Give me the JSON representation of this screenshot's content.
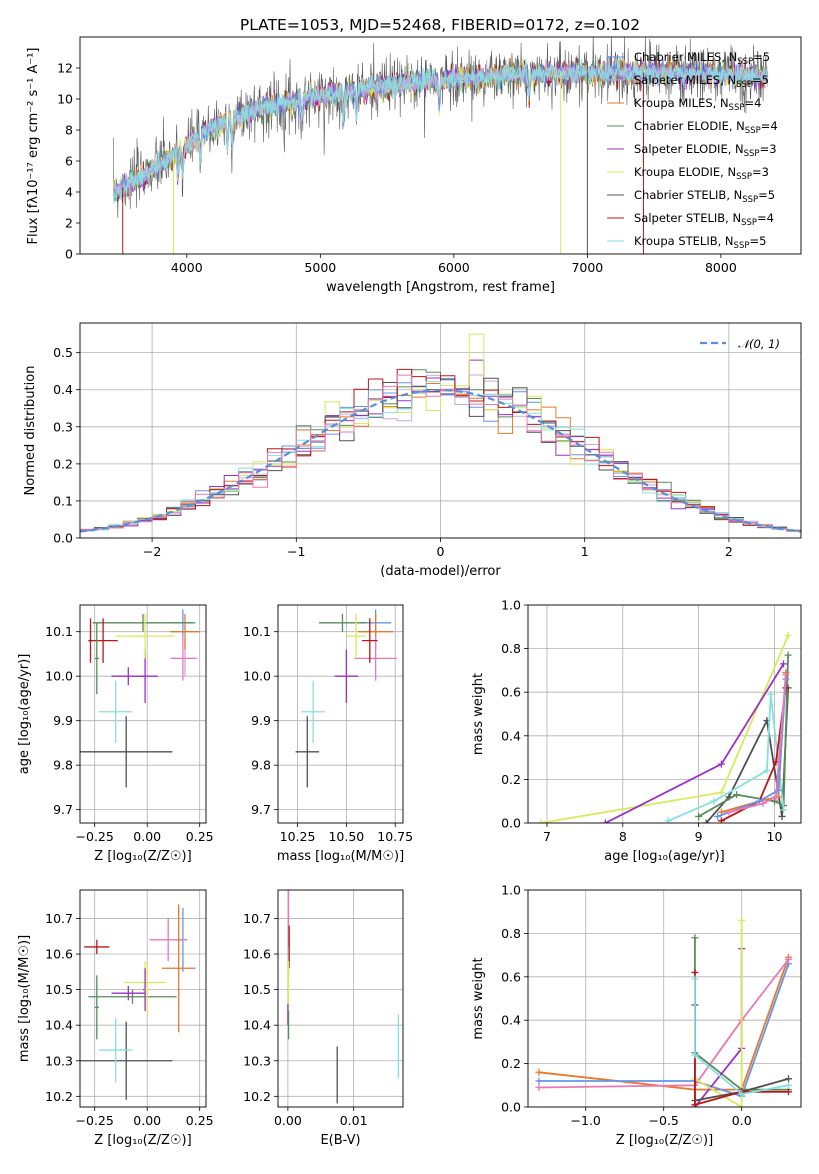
{
  "title": "PLATE=1053, MJD=52468, FIBERID=0172, z=0.102",
  "colors": {
    "Chabrier MILES": "#6495ED",
    "Salpeter MILES": "#C9A7E0",
    "Kroupa MILES": "#E8782A",
    "Chabrier ELODIE": "#5B8A5B",
    "Salpeter ELODIE": "#9B30C8",
    "Kroupa ELODIE": "#D8EA5A",
    "Chabrier STELIB": "#505050",
    "Salpeter STELIB": "#B81818",
    "Kroupa STELIB": "#86E0E0",
    "pink": "#E878B8",
    "normal": "#5A8ED8"
  },
  "spectrum": {
    "xlabel": "wavelength [Angstrom, rest frame]",
    "ylabel": "Flux [f",
    "ylabel_full": "Flux [fλ10⁻¹⁷ erg cm⁻² s⁻¹ A⁻¹]",
    "xticks": [
      "4000",
      "5000",
      "6000",
      "7000",
      "8000"
    ],
    "yticks": [
      "0",
      "2",
      "4",
      "6",
      "8",
      "10",
      "12"
    ],
    "legend": [
      {
        "label": "Chabrier MILES, N",
        "sub": "SSP",
        "tail": "=5",
        "key": "Chabrier MILES"
      },
      {
        "label": "Salpeter MILES, N",
        "sub": "SSP",
        "tail": "=5",
        "key": "Salpeter MILES"
      },
      {
        "label": "Kroupa MILES, N",
        "sub": "SSP",
        "tail": "=4",
        "key": "Kroupa MILES"
      },
      {
        "label": "Chabrier ELODIE, N",
        "sub": "SSP",
        "tail": "=4",
        "key": "Chabrier ELODIE"
      },
      {
        "label": "Salpeter ELODIE, N",
        "sub": "SSP",
        "tail": "=3",
        "key": "Salpeter ELODIE"
      },
      {
        "label": "Kroupa ELODIE, N",
        "sub": "SSP",
        "tail": "=3",
        "key": "Kroupa ELODIE"
      },
      {
        "label": "Chabrier STELIB, N",
        "sub": "SSP",
        "tail": "=5",
        "key": "Chabrier STELIB"
      },
      {
        "label": "Salpeter STELIB, N",
        "sub": "SSP",
        "tail": "=4",
        "key": "Salpeter STELIB"
      },
      {
        "label": "Kroupa STELIB, N",
        "sub": "SSP",
        "tail": "=5",
        "key": "Kroupa STELIB"
      }
    ]
  },
  "histogram": {
    "xlabel": "(data-model)/error",
    "ylabel": "Normed distribution",
    "legend_label": "𝒩(0, 1)",
    "xticks": [
      "−2",
      "−1",
      "0",
      "1",
      "2"
    ],
    "yticks": [
      "0.0",
      "0.1",
      "0.2",
      "0.3",
      "0.4",
      "0.5"
    ]
  },
  "panels": {
    "zage": {
      "xlabel": "Z [log₁₀(Z/Z☉)]",
      "ylabel": "age  [log₁₀(age/yr)]",
      "xticks": [
        "−0.25",
        "0.00",
        "0.25"
      ],
      "yticks": [
        "9.7",
        "9.8",
        "9.9",
        "10.0",
        "10.1"
      ]
    },
    "massage": {
      "xlabel": "mass [log₁₀(M/M☉)]",
      "xticks": [
        "10.25",
        "10.50",
        "10.75"
      ],
      "yticks": [
        "9.7",
        "9.8",
        "9.9",
        "10.0",
        "10.1"
      ]
    },
    "agew": {
      "xlabel": "age  [log₁₀(age/yr)]",
      "ylabel": "mass weight",
      "xticks": [
        "7",
        "8",
        "9",
        "10"
      ],
      "yticks": [
        "0.0",
        "0.2",
        "0.4",
        "0.6",
        "0.8",
        "1.0"
      ]
    },
    "zmass": {
      "xlabel": "Z [log₁₀(Z/Z☉)]",
      "ylabel": "mass [log₁₀(M/M☉)]",
      "xticks": [
        "−0.25",
        "0.00",
        "0.25"
      ],
      "yticks": [
        "10.2",
        "10.3",
        "10.4",
        "10.5",
        "10.6",
        "10.7"
      ]
    },
    "ebvmass": {
      "xlabel": "E(B-V)",
      "xticks": [
        "0.00",
        "0.01"
      ],
      "yticks": [
        "10.2",
        "10.3",
        "10.4",
        "10.5",
        "10.6",
        "10.7"
      ]
    },
    "zw": {
      "xlabel": "Z [log₁₀(Z/Z☉)]",
      "ylabel": "mass weight",
      "xticks": [
        "−1.0",
        "−0.5",
        "0.0"
      ],
      "yticks": [
        "0.0",
        "0.2",
        "0.4",
        "0.6",
        "0.8",
        "1.0"
      ]
    }
  },
  "chart_data": [
    {
      "type": "line",
      "title": "PLATE=1053, MJD=52468, FIBERID=0172, z=0.102",
      "xlabel": "wavelength [Angstrom, rest frame]",
      "ylabel": "Flux [fλ10⁻¹⁷ erg cm⁻² s⁻¹ A⁻¹]",
      "xlim": [
        3200,
        8600
      ],
      "ylim": [
        0,
        14
      ],
      "continuum": {
        "x": [
          3450,
          3700,
          3900,
          4100,
          4300,
          4500,
          5000,
          5500,
          6000,
          6500,
          7000,
          7500,
          8000,
          8350
        ],
        "y": [
          4.0,
          5.2,
          6.3,
          7.7,
          8.6,
          9.3,
          10.2,
          10.9,
          11.3,
          11.6,
          11.7,
          11.7,
          11.6,
          11.4
        ]
      },
      "series": [
        "Chabrier MILES",
        "Salpeter MILES",
        "Kroupa MILES",
        "Chabrier ELODIE",
        "Salpeter ELODIE",
        "Kroupa ELODIE",
        "Chabrier STELIB",
        "Salpeter STELIB",
        "Kroupa STELIB"
      ]
    },
    {
      "type": "bar",
      "xlabel": "(data-model)/error",
      "ylabel": "Normed distribution",
      "xlim": [
        -2.5,
        2.5
      ],
      "ylim": [
        0,
        0.58
      ],
      "bin_edges_start": -2.5,
      "bin_width": 0.1,
      "reference": "N(0,1)"
    },
    {
      "type": "scatter",
      "name": "Z vs age",
      "xlim": [
        -0.32,
        0.28
      ],
      "ylim": [
        9.67,
        10.16
      ],
      "points": [
        {
          "c": "Chabrier MILES",
          "x": 0.17,
          "y": 10.12,
          "dx": 0.06,
          "dy": 0.03
        },
        {
          "c": "Salpeter MILES",
          "x": 0.18,
          "y": 10.04,
          "dx": 0.06,
          "dy": 0.04
        },
        {
          "c": "Kroupa MILES",
          "x": 0.18,
          "y": 10.1,
          "dx": 0.07,
          "dy": 0.04
        },
        {
          "c": "Chabrier ELODIE",
          "x": -0.02,
          "y": 10.12,
          "dx": 0.24,
          "dy": 0.02
        },
        {
          "c": "Salpeter ELODIE",
          "x": -0.01,
          "y": 10.0,
          "dx": 0.06,
          "dy": 0.06
        },
        {
          "c": "Kroupa ELODIE",
          "x": -0.01,
          "y": 10.09,
          "dx": 0.14,
          "dy": 0.05
        },
        {
          "c": "Chabrier STELIB",
          "x": -0.1,
          "y": 9.83,
          "dx": 0.22,
          "dy": 0.08
        },
        {
          "c": "Salpeter STELIB",
          "x": -0.21,
          "y": 10.08,
          "dx": 0.07,
          "dy": 0.05
        },
        {
          "c": "Kroupa STELIB",
          "x": -0.15,
          "y": 9.92,
          "dx": 0.08,
          "dy": 0.07
        },
        {
          "c": "pink",
          "x": 0.17,
          "y": 10.04,
          "dx": 0.06,
          "dy": 0.05
        },
        {
          "c": "Salpeter ELODIE",
          "x": -0.09,
          "y": 10.0,
          "dx": 0.08,
          "dy": 0.02
        },
        {
          "c": "Salpeter STELIB",
          "x": -0.27,
          "y": 10.08,
          "dx": 0.01,
          "dy": 0.05
        },
        {
          "c": "Chabrier ELODIE",
          "x": -0.24,
          "y": 10.04,
          "dx": 0.01,
          "dy": 0.08
        }
      ]
    },
    {
      "type": "scatter",
      "name": "mass vs age",
      "xlim": [
        10.15,
        10.79
      ],
      "ylim": [
        9.67,
        10.16
      ],
      "points": [
        {
          "c": "Chabrier MILES",
          "x": 10.65,
          "y": 10.12,
          "dx": 0.08,
          "dy": 0.03
        },
        {
          "c": "Kroupa MILES",
          "x": 10.65,
          "y": 10.1,
          "dx": 0.09,
          "dy": 0.04
        },
        {
          "c": "pink",
          "x": 10.65,
          "y": 10.04,
          "dx": 0.11,
          "dy": 0.05
        },
        {
          "c": "Chabrier ELODIE",
          "x": 10.48,
          "y": 10.12,
          "dx": 0.12,
          "dy": 0.02
        },
        {
          "c": "Salpeter ELODIE",
          "x": 10.5,
          "y": 10.0,
          "dx": 0.06,
          "dy": 0.06
        },
        {
          "c": "Kroupa ELODIE",
          "x": 10.55,
          "y": 10.09,
          "dx": 0.05,
          "dy": 0.05
        },
        {
          "c": "Chabrier STELIB",
          "x": 10.3,
          "y": 9.83,
          "dx": 0.06,
          "dy": 0.08
        },
        {
          "c": "Salpeter STELIB",
          "x": 10.62,
          "y": 10.08,
          "dx": 0.04,
          "dy": 0.05
        },
        {
          "c": "Kroupa STELIB",
          "x": 10.33,
          "y": 9.92,
          "dx": 0.06,
          "dy": 0.07
        }
      ]
    },
    {
      "type": "line",
      "name": "age vs mass weight",
      "xlim": [
        6.75,
        10.35
      ],
      "ylim": [
        0,
        1
      ],
      "series": [
        {
          "c": "Kroupa ELODIE",
          "x": [
            6.92,
            9.3,
            10.18
          ],
          "y": [
            0.0,
            0.14,
            0.86
          ]
        },
        {
          "c": "Salpeter ELODIE",
          "x": [
            7.77,
            9.3,
            10.12
          ],
          "y": [
            0.0,
            0.27,
            0.73
          ]
        },
        {
          "c": "Chabrier STELIB",
          "x": [
            9.1,
            9.4,
            9.9,
            10.1,
            10.18
          ],
          "y": [
            0.0,
            0.12,
            0.47,
            0.03,
            0.62
          ]
        },
        {
          "c": "Chabrier ELODIE",
          "x": [
            9.0,
            9.5,
            10.0,
            10.12,
            10.18
          ],
          "y": [
            0.03,
            0.13,
            0.1,
            0.08,
            0.77
          ]
        },
        {
          "c": "Kroupa STELIB",
          "x": [
            8.6,
            9.2,
            9.9,
            9.95,
            10.12
          ],
          "y": [
            0.01,
            0.1,
            0.24,
            0.59,
            0.06
          ]
        },
        {
          "c": "Salpeter STELIB",
          "x": [
            9.3,
            9.8,
            10.02,
            10.15
          ],
          "y": [
            0.01,
            0.1,
            0.28,
            0.62
          ]
        },
        {
          "c": "Kroupa MILES",
          "x": [
            9.3,
            9.8,
            10.05,
            10.15
          ],
          "y": [
            0.05,
            0.1,
            0.12,
            0.69
          ]
        },
        {
          "c": "Chabrier MILES",
          "x": [
            9.25,
            9.8,
            10.05,
            10.15
          ],
          "y": [
            0.03,
            0.1,
            0.15,
            0.66
          ]
        },
        {
          "c": "pink",
          "x": [
            9.4,
            9.85,
            10.02,
            10.15
          ],
          "y": [
            0.05,
            0.09,
            0.12,
            0.68
          ]
        }
      ]
    },
    {
      "type": "scatter",
      "name": "Z vs mass",
      "xlim": [
        -0.32,
        0.28
      ],
      "ylim": [
        10.17,
        10.78
      ],
      "points": [
        {
          "c": "Chabrier MILES",
          "x": 0.17,
          "y": 10.64,
          "dx": 0.02,
          "dy": 0.09
        },
        {
          "c": "pink",
          "x": 0.1,
          "y": 10.64,
          "dx": 0.09,
          "dy": 0.06
        },
        {
          "c": "Kroupa MILES",
          "x": 0.15,
          "y": 10.56,
          "dx": 0.08,
          "dy": 0.18
        },
        {
          "c": "Chabrier ELODIE",
          "x": -0.07,
          "y": 10.48,
          "dx": 0.21,
          "dy": 0.02
        },
        {
          "c": "Salpeter ELODIE",
          "x": -0.09,
          "y": 10.49,
          "dx": 0.08,
          "dy": 0.02
        },
        {
          "c": "Kroupa ELODIE",
          "x": -0.01,
          "y": 10.52,
          "dx": 0.1,
          "dy": 0.06
        },
        {
          "c": "Chabrier STELIB",
          "x": -0.1,
          "y": 10.3,
          "dx": 0.22,
          "dy": 0.11
        },
        {
          "c": "Salpeter STELIB",
          "x": -0.24,
          "y": 10.62,
          "dx": 0.06,
          "dy": 0.02
        },
        {
          "c": "Kroupa STELIB",
          "x": -0.15,
          "y": 10.33,
          "dx": 0.08,
          "dy": 0.09
        },
        {
          "c": "Chabrier ELODIE",
          "x": -0.24,
          "y": 10.45,
          "dx": 0.01,
          "dy": 0.09
        },
        {
          "c": "Salpeter ELODIE",
          "x": -0.01,
          "y": 10.5,
          "dx": 0.01,
          "dy": 0.06
        },
        {
          "c": "Kroupa ELODIE",
          "x": 0.0,
          "y": 10.5,
          "dx": 0.01,
          "dy": 0.07
        }
      ]
    },
    {
      "type": "scatter",
      "name": "E(B-V) vs mass",
      "xlim": [
        -0.0015,
        0.0175
      ],
      "ylim": [
        10.17,
        10.78
      ],
      "points": [
        {
          "c": "pink",
          "x": 0.0001,
          "y": 10.7,
          "dx": 0,
          "dy": 0.08
        },
        {
          "c": "Salpeter STELIB",
          "x": 0.0002,
          "y": 10.62,
          "dx": 0,
          "dy": 0.06
        },
        {
          "c": "Kroupa ELODIE",
          "x": 0.0001,
          "y": 10.5,
          "dx": 0,
          "dy": 0.08
        },
        {
          "c": "Salpeter ELODIE",
          "x": 0.0,
          "y": 10.43,
          "dx": 0,
          "dy": 0.03
        },
        {
          "c": "Chabrier ELODIE",
          "x": 0.0001,
          "y": 10.4,
          "dx": 0,
          "dy": 0.04
        },
        {
          "c": "Chabrier STELIB",
          "x": 0.0075,
          "y": 10.26,
          "dx": 0,
          "dy": 0.08
        },
        {
          "c": "Kroupa STELIB",
          "x": 0.0168,
          "y": 10.34,
          "dx": 0,
          "dy": 0.09
        }
      ]
    },
    {
      "type": "line",
      "name": "Z vs mass weight",
      "xlim": [
        -1.37,
        0.38
      ],
      "ylim": [
        0,
        1
      ],
      "series": [
        {
          "c": "Kroupa MILES",
          "x": [
            -1.3,
            -0.3,
            0.0,
            0.3
          ],
          "y": [
            0.16,
            0.08,
            0.08,
            0.69
          ]
        },
        {
          "c": "Chabrier MILES",
          "x": [
            -1.3,
            -0.3,
            0.0,
            0.3
          ],
          "y": [
            0.12,
            0.12,
            0.05,
            0.66
          ]
        },
        {
          "c": "pink",
          "x": [
            -1.3,
            -0.3,
            0.0,
            0.3
          ],
          "y": [
            0.09,
            0.1,
            0.4,
            0.68
          ]
        },
        {
          "c": "Chabrier ELODIE",
          "x": [
            -0.3,
            -0.3,
            0.0,
            0.3
          ],
          "y": [
            0.78,
            0.25,
            0.08,
            0.08
          ]
        },
        {
          "c": "Salpeter ELODIE",
          "x": [
            -0.3,
            0.0,
            0.0
          ],
          "y": [
            0.0,
            0.27,
            0.73
          ]
        },
        {
          "c": "Kroupa ELODIE",
          "x": [
            -0.3,
            0.0,
            0.0
          ],
          "y": [
            0.13,
            0.0,
            0.86
          ]
        },
        {
          "c": "Chabrier STELIB",
          "x": [
            -0.3,
            -0.3,
            0.0,
            0.3
          ],
          "y": [
            0.47,
            0.03,
            0.07,
            0.13
          ]
        },
        {
          "c": "Salpeter STELIB",
          "x": [
            -0.3,
            -0.3,
            0.0,
            0.3
          ],
          "y": [
            0.62,
            0.01,
            0.07,
            0.07
          ]
        },
        {
          "c": "Kroupa STELIB",
          "x": [
            -0.3,
            -0.3,
            0.0,
            0.3
          ],
          "y": [
            0.59,
            0.24,
            0.06,
            0.1
          ]
        }
      ]
    }
  ]
}
